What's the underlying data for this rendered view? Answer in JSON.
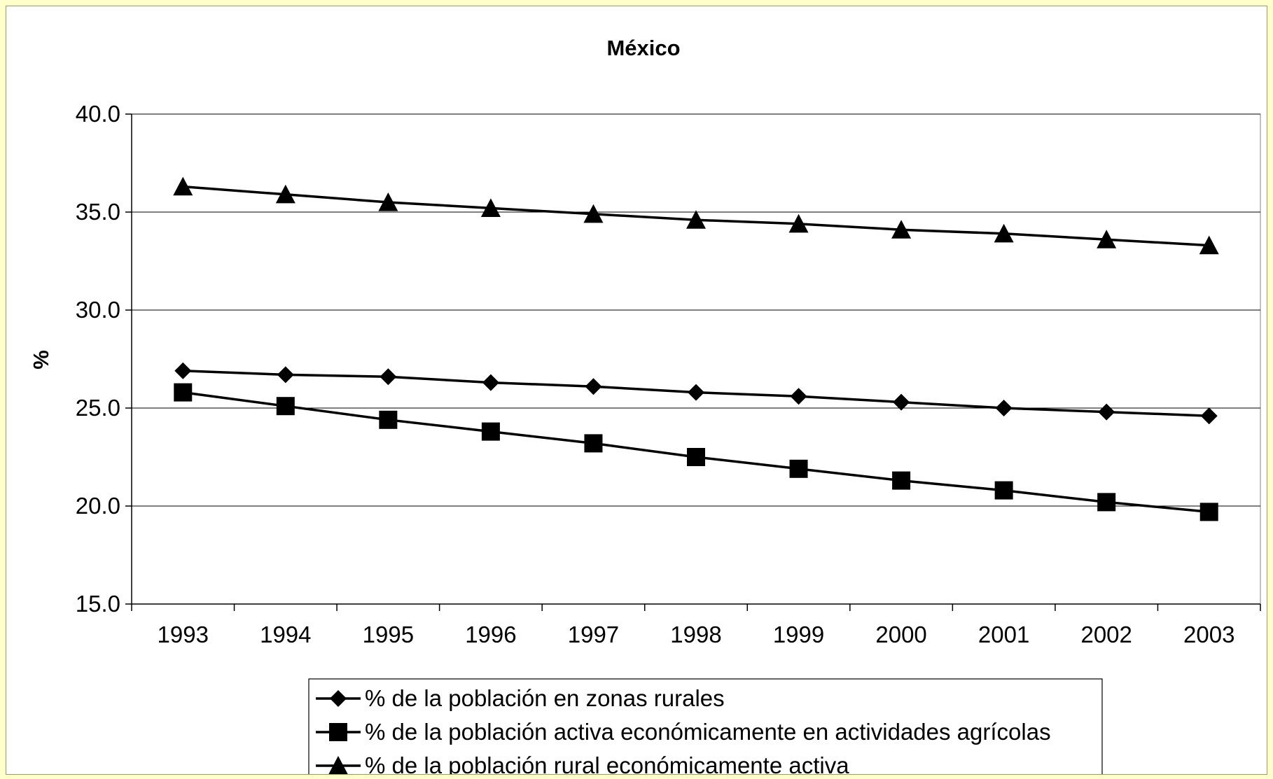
{
  "chart_data": {
    "type": "line",
    "title": "México",
    "xlabel": "",
    "ylabel": "%",
    "ylim": [
      15,
      40
    ],
    "yticks": [
      "15.0",
      "20.0",
      "25.0",
      "30.0",
      "35.0",
      "40.0"
    ],
    "categories": [
      "1993",
      "1994",
      "1995",
      "1996",
      "1997",
      "1998",
      "1999",
      "2000",
      "2001",
      "2002",
      "2003"
    ],
    "grid": true,
    "legend_position": "bottom",
    "series": [
      {
        "name": "% de la población en zonas rurales",
        "marker": "diamond",
        "color": "#000000",
        "values": [
          26.9,
          26.7,
          26.6,
          26.3,
          26.1,
          25.8,
          25.6,
          25.3,
          25.0,
          24.8,
          24.6
        ]
      },
      {
        "name": "% de la población activa económicamente en actividades agrícolas",
        "marker": "square",
        "color": "#000000",
        "values": [
          25.8,
          25.1,
          24.4,
          23.8,
          23.2,
          22.5,
          21.9,
          21.3,
          20.8,
          20.2,
          19.7
        ]
      },
      {
        "name": "% de la población rural económicamente activa",
        "marker": "triangle",
        "color": "#000000",
        "values": [
          36.3,
          35.9,
          35.5,
          35.2,
          34.9,
          34.6,
          34.4,
          34.1,
          33.9,
          33.6,
          33.3
        ]
      }
    ]
  },
  "colors": {
    "page_background": "#ffffcc",
    "plot_background": "#ffffff",
    "gridline": "#000000",
    "series": "#000000"
  }
}
